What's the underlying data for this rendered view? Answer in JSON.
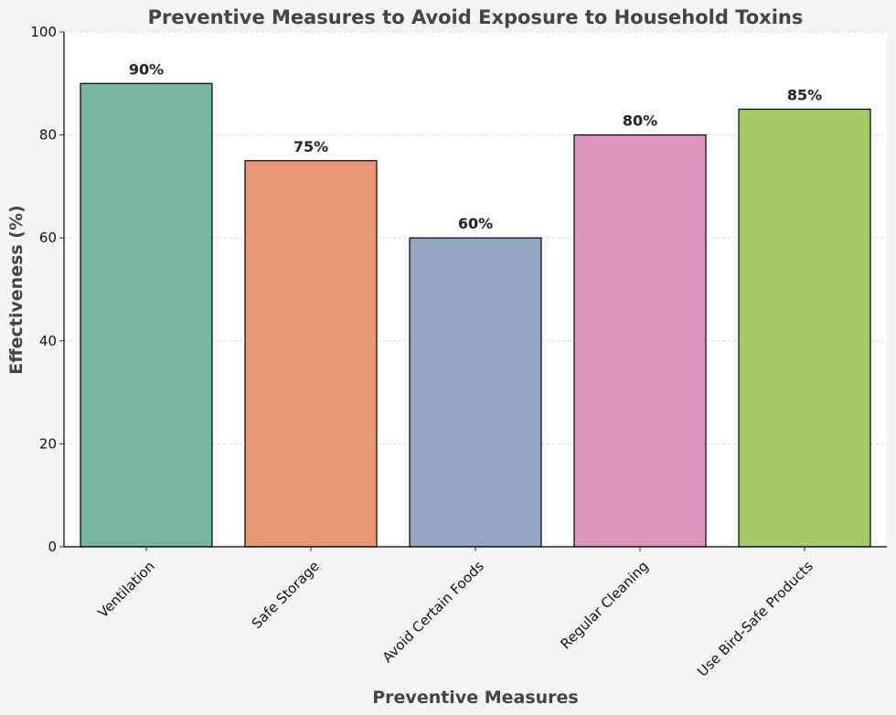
{
  "chart_data": {
    "type": "bar",
    "title": "Preventive Measures to Avoid Exposure to Household Toxins",
    "xlabel": "Preventive Measures",
    "ylabel": "Effectiveness (%)",
    "categories": [
      "Ventilation",
      "Safe Storage",
      "Avoid Certain Foods",
      "Regular Cleaning",
      "Use Bird-Safe Products"
    ],
    "values": [
      90,
      75,
      60,
      80,
      85
    ],
    "data_labels": [
      "90%",
      "75%",
      "60%",
      "80%",
      "85%"
    ],
    "colors": [
      "#76b5a0",
      "#e99875",
      "#94a4c3",
      "#dc95bf",
      "#a3c866"
    ],
    "ylim": [
      0,
      100
    ],
    "yticks": [
      0,
      20,
      40,
      60,
      80,
      100
    ],
    "ytick_labels": [
      "0",
      "20",
      "40",
      "60",
      "80",
      "100"
    ],
    "grid": true,
    "grid_axis": "y"
  }
}
